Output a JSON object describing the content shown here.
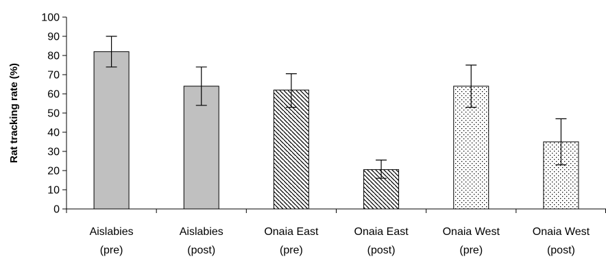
{
  "chart_data": {
    "type": "bar",
    "title": "",
    "xlabel": "",
    "ylabel": "Rat tracking rate (%)",
    "ylim": [
      0,
      100
    ],
    "yticks": [
      0,
      10,
      20,
      30,
      40,
      50,
      60,
      70,
      80,
      90,
      100
    ],
    "grid": false,
    "legend": "none",
    "categories": [
      {
        "line1": "Aislabies",
        "line2": "(pre)"
      },
      {
        "line1": "Aislabies",
        "line2": "(post)"
      },
      {
        "line1": "Onaia East",
        "line2": "(pre)"
      },
      {
        "line1": "Onaia East",
        "line2": "(post)"
      },
      {
        "line1": "Onaia West",
        "line2": "(pre)"
      },
      {
        "line1": "Onaia West",
        "line2": "(post)"
      }
    ],
    "values": [
      82,
      64,
      62,
      20.5,
      64,
      35
    ],
    "error_low": [
      74,
      54,
      53,
      16,
      53,
      23
    ],
    "error_high": [
      90,
      74,
      70.5,
      25.5,
      75,
      47
    ],
    "fills": [
      "solid-gray",
      "solid-gray",
      "diagonal-hatch",
      "diagonal-hatch",
      "dotted",
      "dotted"
    ],
    "colors": {
      "gray_fill": "#c0c0c0",
      "hatch": "#000000",
      "dots": "#000000",
      "background": "#ffffff",
      "stroke": "#000000"
    }
  }
}
